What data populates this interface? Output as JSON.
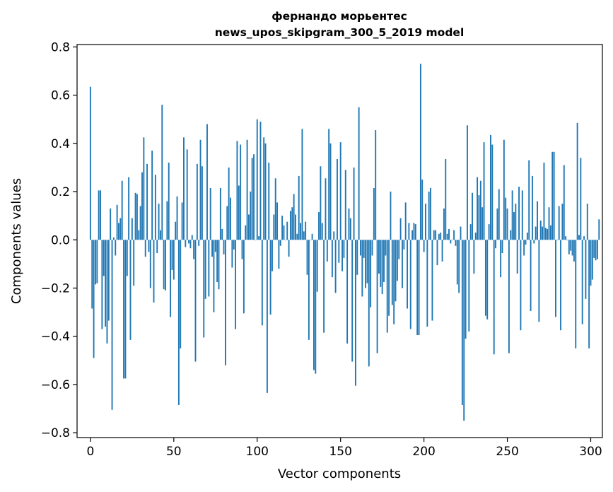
{
  "chart_data": {
    "type": "bar",
    "title_line1": "фернандо морьентес",
    "title_line2": "news_upos_skipgram_300_5_2019 model",
    "xlabel": "Vector components",
    "ylabel": "Components values",
    "xlim": [
      -8,
      307
    ],
    "ylim": [
      -0.82,
      0.81
    ],
    "xticks": [
      0,
      50,
      100,
      150,
      200,
      250,
      300
    ],
    "yticks": [
      -0.8,
      -0.6,
      -0.4,
      -0.2,
      0.0,
      0.2,
      0.4,
      0.6,
      0.8
    ],
    "ytick_labels": [
      "−0.8",
      "−0.6",
      "−0.4",
      "−0.2",
      "0.0",
      "0.2",
      "0.4",
      "0.6",
      "0.8"
    ],
    "xtick_labels": [
      "0",
      "50",
      "100",
      "150",
      "200",
      "250",
      "300"
    ],
    "grid": false,
    "bar_color": "#1f77b4",
    "values": [
      0.635,
      -0.285,
      -0.49,
      -0.185,
      -0.18,
      0.205,
      0.205,
      -0.37,
      -0.15,
      -0.36,
      -0.43,
      -0.335,
      0.13,
      -0.705,
      0.01,
      -0.065,
      0.145,
      0.07,
      0.09,
      0.245,
      -0.575,
      -0.575,
      -0.15,
      0.26,
      -0.415,
      0.09,
      -0.19,
      0.195,
      0.19,
      0.04,
      0.14,
      0.28,
      0.425,
      -0.07,
      0.315,
      -0.05,
      -0.2,
      0.37,
      -0.26,
      0.27,
      -0.055,
      0.15,
      0.04,
      0.56,
      -0.205,
      -0.21,
      0.16,
      0.32,
      -0.32,
      -0.125,
      -0.165,
      0.075,
      0.18,
      -0.685,
      -0.45,
      0.155,
      0.425,
      -0.03,
      0.375,
      -0.015,
      -0.035,
      0.02,
      -0.08,
      -0.505,
      0.315,
      -0.025,
      0.415,
      0.305,
      -0.405,
      -0.245,
      0.48,
      -0.235,
      0.215,
      -0.07,
      -0.3,
      -0.05,
      -0.175,
      -0.205,
      0.215,
      0.045,
      -0.06,
      -0.52,
      0.14,
      0.3,
      0.175,
      -0.115,
      -0.04,
      -0.37,
      0.41,
      0.225,
      0.395,
      -0.08,
      -0.305,
      0.06,
      0.415,
      0.105,
      0.2,
      0.34,
      0.355,
      0.0,
      0.5,
      0.015,
      0.49,
      -0.355,
      0.425,
      0.4,
      -0.635,
      0.32,
      -0.31,
      -0.13,
      0.105,
      0.255,
      0.155,
      -0.12,
      -0.025,
      0.1,
      0.06,
      0.0,
      0.075,
      -0.07,
      0.12,
      0.135,
      0.19,
      0.105,
      0.025,
      0.265,
      0.07,
      0.46,
      0.035,
      0.075,
      -0.145,
      -0.415,
      0.0,
      0.025,
      -0.54,
      -0.555,
      -0.215,
      0.115,
      0.305,
      0.07,
      -0.385,
      0.255,
      -0.09,
      0.46,
      0.4,
      -0.155,
      0.035,
      -0.22,
      0.335,
      -0.095,
      0.405,
      -0.13,
      -0.075,
      0.29,
      -0.43,
      0.13,
      0.09,
      -0.505,
      0.3,
      -0.605,
      -0.145,
      0.55,
      -0.065,
      -0.235,
      -0.075,
      -0.2,
      -0.18,
      -0.525,
      -0.28,
      -0.065,
      0.215,
      0.455,
      -0.47,
      -0.14,
      -0.195,
      -0.225,
      -0.175,
      -0.065,
      -0.385,
      -0.315,
      0.2,
      -0.27,
      -0.35,
      -0.255,
      -0.17,
      -0.08,
      0.09,
      -0.2,
      -0.04,
      0.155,
      -0.285,
      0.07,
      -0.37,
      0.04,
      0.07,
      0.065,
      -0.395,
      -0.395,
      0.73,
      0.25,
      -0.05,
      0.15,
      -0.36,
      0.2,
      0.215,
      -0.335,
      0.04,
      0.04,
      -0.105,
      0.025,
      0.03,
      -0.09,
      0.13,
      0.335,
      0.025,
      0.045,
      -0.015,
      0.0,
      0.04,
      -0.025,
      -0.185,
      -0.22,
      0.055,
      -0.685,
      -0.75,
      -0.41,
      0.475,
      -0.38,
      0.065,
      0.195,
      -0.14,
      0.03,
      0.26,
      0.185,
      0.245,
      0.135,
      0.405,
      -0.315,
      -0.33,
      0.065,
      0.435,
      0.395,
      -0.475,
      -0.035,
      0.13,
      0.21,
      -0.155,
      -0.055,
      0.415,
      0.175,
      0.13,
      -0.47,
      0.04,
      0.205,
      0.115,
      0.15,
      -0.14,
      0.22,
      -0.375,
      0.205,
      -0.065,
      -0.02,
      0.03,
      0.33,
      -0.295,
      0.265,
      -0.015,
      0.055,
      0.16,
      -0.34,
      0.08,
      0.055,
      0.32,
      0.05,
      0.045,
      0.135,
      0.06,
      0.365,
      0.365,
      -0.32,
      0.0,
      0.14,
      -0.375,
      0.15,
      0.31,
      0.015,
      0.0,
      -0.06,
      -0.045,
      -0.065,
      -0.09,
      -0.45,
      0.485,
      0.02,
      0.34,
      -0.35,
      0.015,
      -0.245,
      0.15,
      -0.45,
      -0.19,
      -0.165,
      -0.075,
      -0.085,
      -0.08,
      0.085
    ]
  }
}
